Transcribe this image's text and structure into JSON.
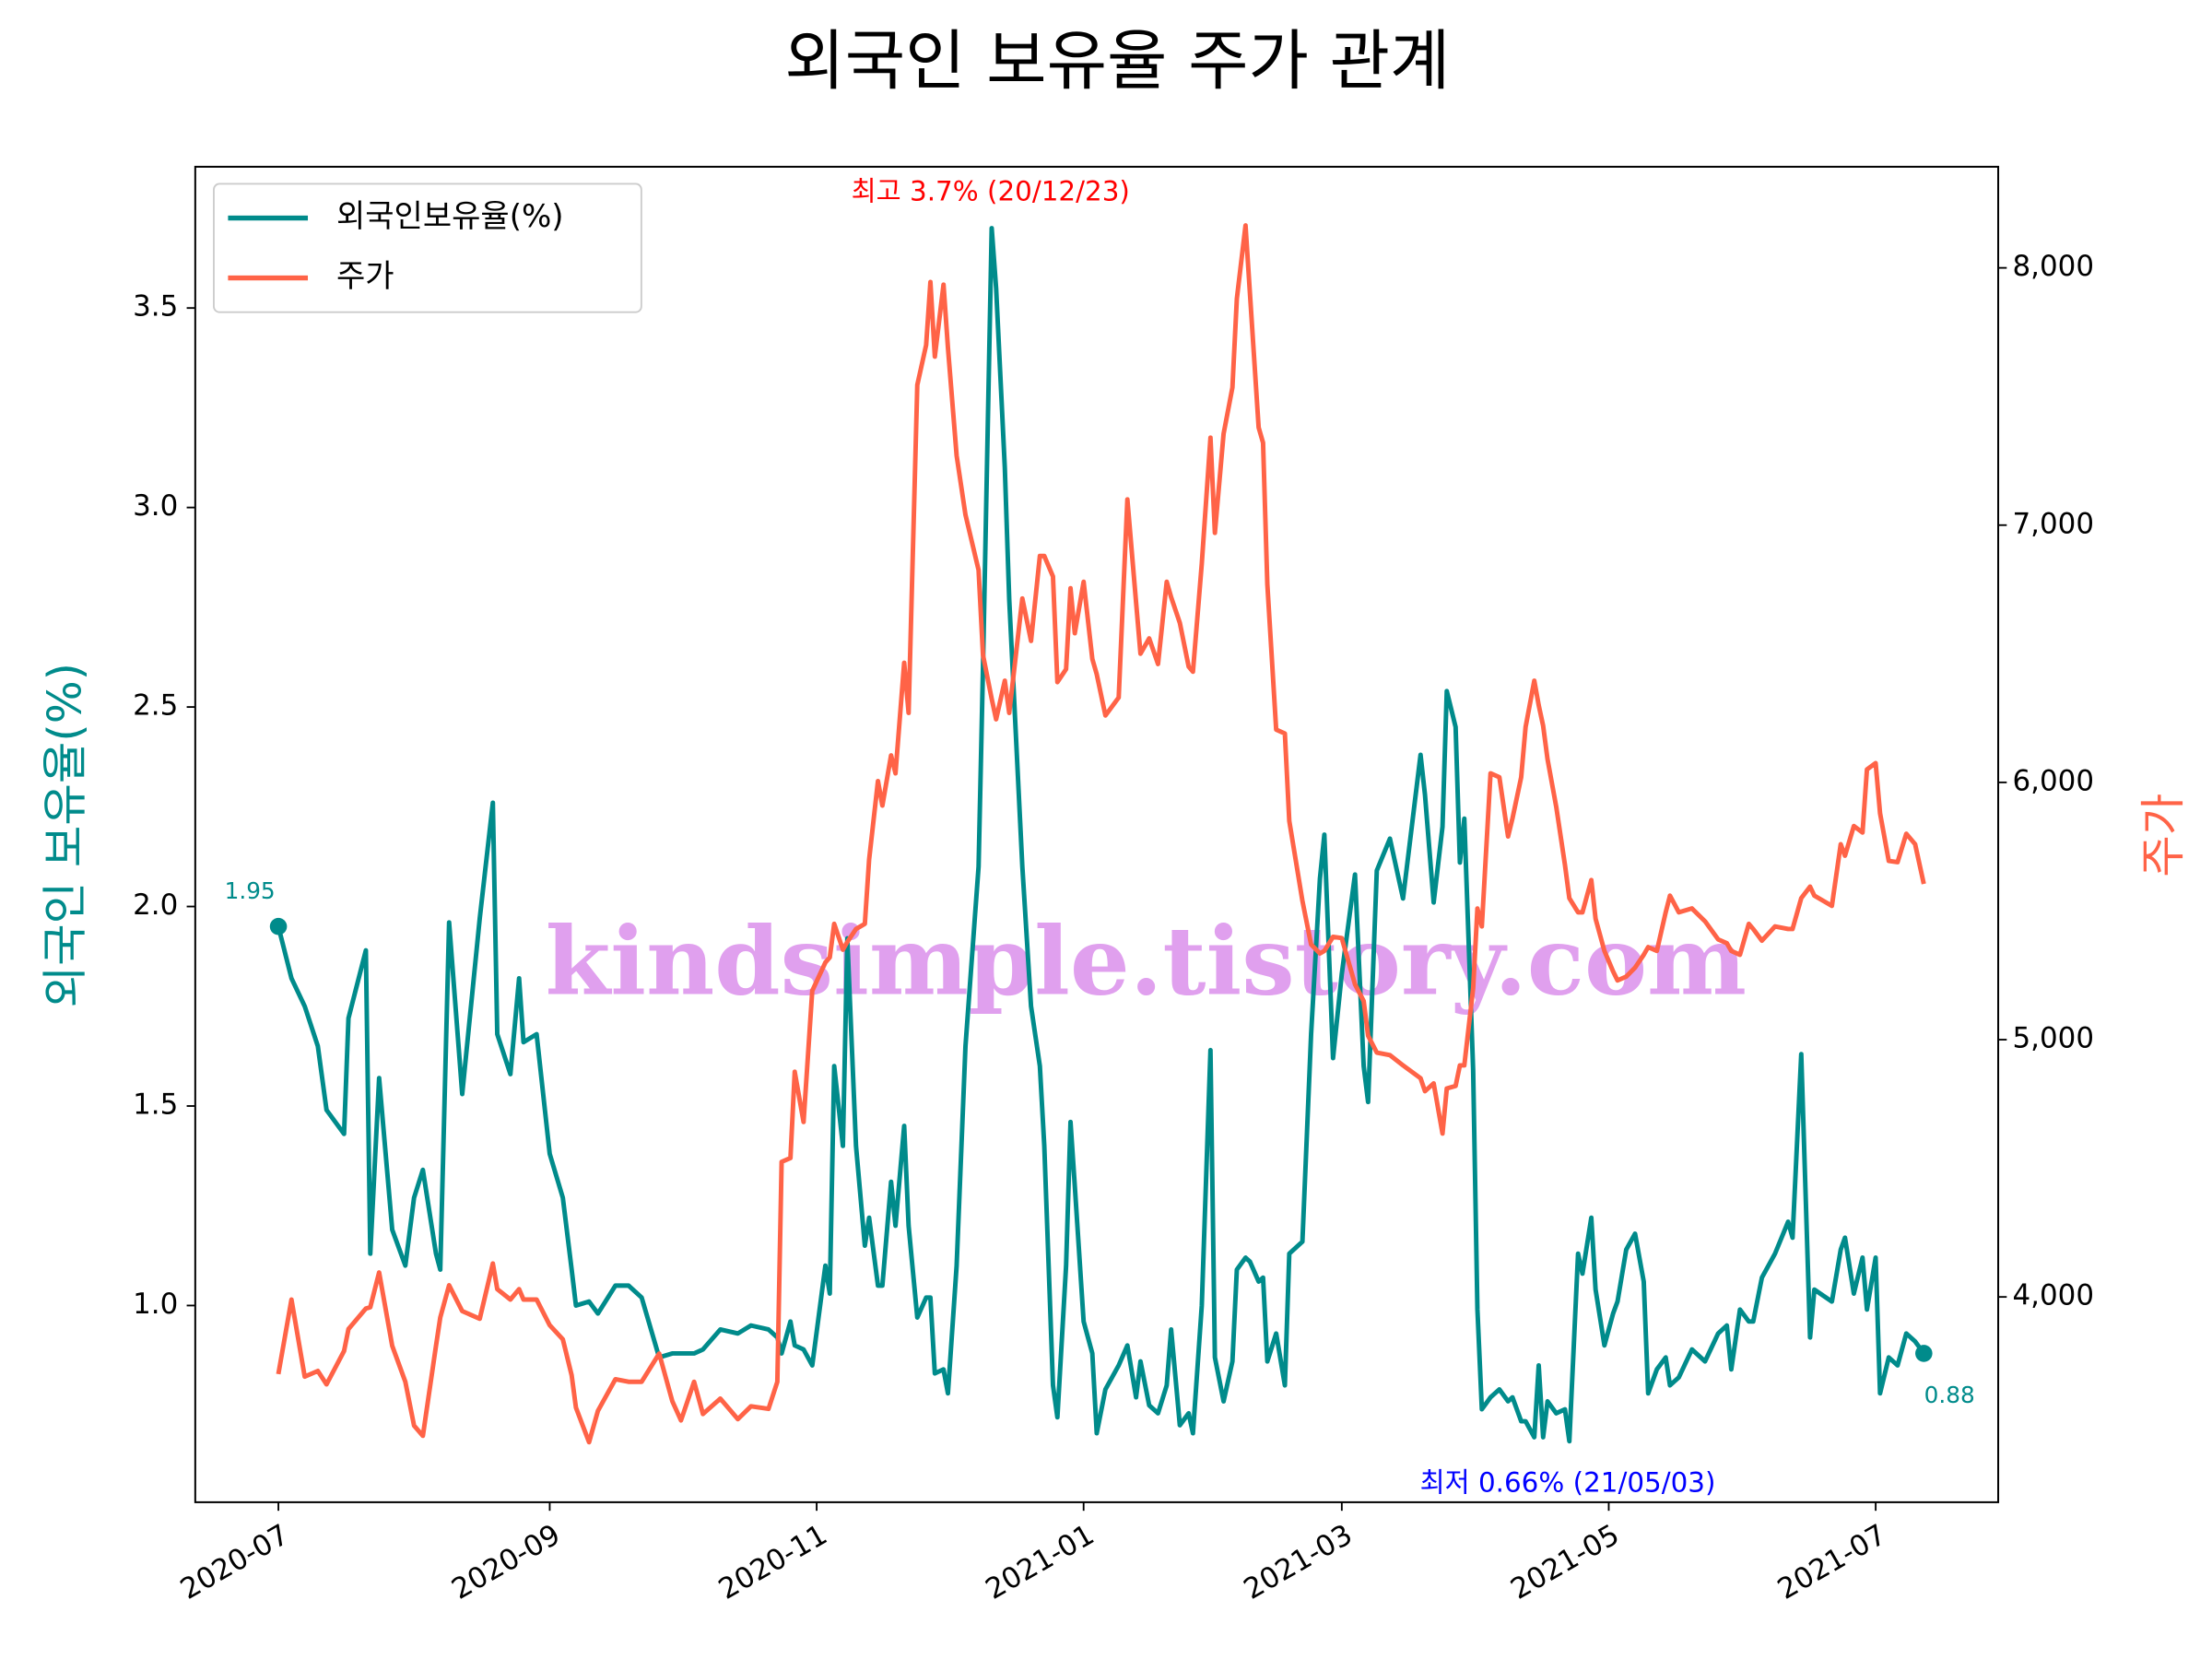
{
  "chart_data": {
    "type": "line",
    "title": "외국인 보유율 주가 관계",
    "ylabel": "외국인 보유율(%)",
    "y2label": "주가",
    "watermark": "kindsimple.tistory.com",
    "legend": "upper left",
    "annotations": [
      {
        "text": "최고 3.7% (20/12/23)",
        "color": "#ff0000"
      },
      {
        "text": "최저 0.66% (21/05/03)",
        "color": "#0000ff"
      }
    ],
    "xlim": [
      "2020-06-12",
      "2021-07-29"
    ],
    "xticks": [
      "2020-07",
      "2020-09",
      "2020-11",
      "2021-01",
      "2021-03",
      "2021-05",
      "2021-07"
    ],
    "ylim": [
      0.507,
      3.854
    ],
    "yticks": [
      {
        "value": 1,
        "label": "1.0"
      },
      1.5,
      {
        "value": 2,
        "label": "2.0"
      },
      2.5,
      {
        "value": 3,
        "label": "3.0"
      },
      3.5
    ],
    "y2lim": [
      3202,
      8393
    ],
    "y2ticks": [
      {
        "value": 4000,
        "label": "4,000"
      },
      {
        "value": 5000,
        "label": "5,000"
      },
      {
        "value": 6000,
        "label": "6,000"
      },
      {
        "value": 7000,
        "label": "7,000"
      },
      {
        "value": 8000,
        "label": "8,000"
      }
    ],
    "x": [
      "2020-07-01",
      "2020-07-04",
      "2020-07-07",
      "2020-07-10",
      "2020-07-12",
      "2020-07-16",
      "2020-07-17",
      "2020-07-21",
      "2020-07-22",
      "2020-07-24",
      "2020-07-27",
      "2020-07-30",
      "2020-08-01",
      "2020-08-03",
      "2020-08-06",
      "2020-08-07",
      "2020-08-09",
      "2020-08-12",
      "2020-08-16",
      "2020-08-19",
      "2020-08-20",
      "2020-08-23",
      "2020-08-25",
      "2020-08-26",
      "2020-08-29",
      "2020-09-01",
      "2020-09-04",
      "2020-09-06",
      "2020-09-07",
      "2020-09-10",
      "2020-09-12",
      "2020-09-16",
      "2020-09-19",
      "2020-09-22",
      "2020-09-26",
      "2020-09-29",
      "2020-10-01",
      "2020-10-04",
      "2020-10-06",
      "2020-10-10",
      "2020-10-14",
      "2020-10-17",
      "2020-10-21",
      "2020-10-23",
      "2020-10-24",
      "2020-10-26",
      "2020-10-27",
      "2020-10-29",
      "2020-10-31",
      "2020-11-03",
      "2020-11-04",
      "2020-11-05",
      "2020-11-07",
      "2020-11-08",
      "2020-11-10",
      "2020-11-12",
      "2020-11-13",
      "2020-11-15",
      "2020-11-16",
      "2020-11-18",
      "2020-11-19",
      "2020-11-21",
      "2020-11-22",
      "2020-11-24",
      "2020-11-26",
      "2020-11-27",
      "2020-11-28",
      "2020-11-30",
      "2020-12-01",
      "2020-12-03",
      "2020-12-05",
      "2020-12-08",
      "2020-12-09",
      "2020-12-11",
      "2020-12-12",
      "2020-12-14",
      "2020-12-15",
      "2020-12-18",
      "2020-12-20",
      "2020-12-22",
      "2020-12-23",
      "2020-12-25",
      "2020-12-26",
      "2020-12-28",
      "2020-12-29",
      "2020-12-30",
      "2021-01-01",
      "2021-01-03",
      "2021-01-04",
      "2021-01-06",
      "2021-01-09",
      "2021-01-11",
      "2021-01-13",
      "2021-01-14",
      "2021-01-16",
      "2021-01-18",
      "2021-01-20",
      "2021-01-21",
      "2021-01-23",
      "2021-01-25",
      "2021-01-26",
      "2021-01-28",
      "2021-01-30",
      "2021-01-31",
      "2021-02-02",
      "2021-02-04",
      "2021-02-05",
      "2021-02-07",
      "2021-02-08",
      "2021-02-10",
      "2021-02-11",
      "2021-02-12",
      "2021-02-14",
      "2021-02-16",
      "2021-02-17",
      "2021-02-20",
      "2021-02-22",
      "2021-02-24",
      "2021-02-25",
      "2021-02-27",
      "2021-03-01",
      "2021-03-04",
      "2021-03-06",
      "2021-03-07",
      "2021-03-09",
      "2021-03-12",
      "2021-03-15",
      "2021-03-19",
      "2021-03-20",
      "2021-03-22",
      "2021-03-24",
      "2021-03-25",
      "2021-03-27",
      "2021-03-28",
      "2021-03-29",
      "2021-03-31",
      "2021-04-01",
      "2021-04-02",
      "2021-04-04",
      "2021-04-06",
      "2021-04-08",
      "2021-04-09",
      "2021-04-11",
      "2021-04-12",
      "2021-04-14",
      "2021-04-15",
      "2021-04-16",
      "2021-04-17",
      "2021-04-19",
      "2021-04-21",
      "2021-04-22",
      "2021-04-24",
      "2021-04-25",
      "2021-04-27",
      "2021-04-28",
      "2021-04-30",
      "2021-05-02",
      "2021-05-03",
      "2021-05-05",
      "2021-05-07",
      "2021-05-09",
      "2021-05-10",
      "2021-05-12",
      "2021-05-14",
      "2021-05-15",
      "2021-05-17",
      "2021-05-20",
      "2021-05-23",
      "2021-05-26",
      "2021-05-28",
      "2021-05-29",
      "2021-05-31",
      "2021-06-02",
      "2021-06-03",
      "2021-06-05",
      "2021-06-08",
      "2021-06-11",
      "2021-06-12",
      "2021-06-14",
      "2021-06-16",
      "2021-06-17",
      "2021-06-21",
      "2021-06-23",
      "2021-06-24",
      "2021-06-26",
      "2021-06-28",
      "2021-06-29",
      "2021-07-01",
      "2021-07-02",
      "2021-07-04",
      "2021-07-06",
      "2021-07-08",
      "2021-07-10",
      "2021-07-12"
    ],
    "series": [
      {
        "name": "외국인보유율(%)",
        "color": "#008b8b",
        "values": [
          1.95,
          1.82,
          1.75,
          1.65,
          1.49,
          1.43,
          1.72,
          1.89,
          1.13,
          1.57,
          1.19,
          1.1,
          1.27,
          1.34,
          1.13,
          1.09,
          1.96,
          1.53,
          1.97,
          2.26,
          1.68,
          1.58,
          1.82,
          1.66,
          1.68,
          1.38,
          1.27,
          1.09,
          1.0,
          1.01,
          0.98,
          1.05,
          1.05,
          1.02,
          0.87,
          0.88,
          0.88,
          0.88,
          0.89,
          0.94,
          0.93,
          0.95,
          0.94,
          0.92,
          0.88,
          0.96,
          0.9,
          0.89,
          0.85,
          1.1,
          1.03,
          1.6,
          1.4,
          1.92,
          1.4,
          1.15,
          1.22,
          1.05,
          1.05,
          1.31,
          1.2,
          1.45,
          1.2,
          0.97,
          1.02,
          1.02,
          0.83,
          0.84,
          0.78,
          1.1,
          1.65,
          2.1,
          2.6,
          3.7,
          3.55,
          3.1,
          2.77,
          2.1,
          1.75,
          1.6,
          1.4,
          0.8,
          0.72,
          1.1,
          1.46,
          1.3,
          0.96,
          0.88,
          0.68,
          0.79,
          0.85,
          0.9,
          0.77,
          0.86,
          0.75,
          0.73,
          0.8,
          0.94,
          0.7,
          0.73,
          0.68,
          1.0,
          1.64,
          0.87,
          0.76,
          0.86,
          1.09,
          1.12,
          1.11,
          1.06,
          1.07,
          0.86,
          0.93,
          0.8,
          1.13,
          1.16,
          1.68,
          2.07,
          2.18,
          1.62,
          1.83,
          2.08,
          1.6,
          1.51,
          2.09,
          2.17,
          2.02,
          2.38,
          2.28,
          2.01,
          2.2,
          2.54,
          2.45,
          2.11,
          2.22,
          1.59,
          0.99,
          0.74,
          0.77,
          0.79,
          0.76,
          0.77,
          0.71,
          0.71,
          0.67,
          0.85,
          0.67,
          0.76,
          0.73,
          0.74,
          0.66,
          1.13,
          1.08,
          1.22,
          1.04,
          0.9,
          0.98,
          1.01,
          1.14,
          1.18,
          1.06,
          0.78,
          0.84,
          0.87,
          0.8,
          0.82,
          0.89,
          0.86,
          0.93,
          0.95,
          0.84,
          0.99,
          0.96,
          0.96,
          1.07,
          1.13,
          1.21,
          1.17,
          1.63,
          0.92,
          1.04,
          1.01,
          1.14,
          1.17,
          1.03,
          1.12,
          0.99,
          1.12,
          0.78,
          0.87,
          0.85,
          0.93,
          0.91,
          0.88
        ]
      },
      {
        "name": "주가",
        "color": "#ff6347",
        "axis": "y2",
        "values": [
          3700,
          3990,
          3690,
          3712,
          3660,
          3790,
          3875,
          3955,
          3960,
          4095,
          3810,
          3670,
          3500,
          3460,
          3810,
          3920,
          4045,
          3945,
          3915,
          4130,
          4030,
          3990,
          4030,
          3990,
          3990,
          3890,
          3835,
          3695,
          3570,
          3435,
          3557,
          3680,
          3670,
          3670,
          3780,
          3595,
          3520,
          3670,
          3545,
          3605,
          3525,
          3575,
          3565,
          3670,
          4525,
          4540,
          4875,
          4680,
          5190,
          5300,
          5320,
          5450,
          5350,
          5380,
          5430,
          5450,
          5700,
          6005,
          5910,
          6105,
          6035,
          6465,
          6270,
          7545,
          7700,
          7945,
          7655,
          7935,
          7690,
          7270,
          7040,
          6825,
          6495,
          6325,
          6245,
          6395,
          6270,
          6715,
          6550,
          6880,
          6880,
          6800,
          6390,
          6440,
          6755,
          6580,
          6780,
          6480,
          6420,
          6260,
          6330,
          7100,
          6700,
          6500,
          6560,
          6460,
          6780,
          6720,
          6620,
          6450,
          6430,
          6850,
          7340,
          6970,
          7355,
          7535,
          7880,
          8165,
          7900,
          7380,
          7320,
          6770,
          6205,
          6190,
          5850,
          5540,
          5370,
          5335,
          5345,
          5400,
          5395,
          5215,
          5150,
          5015,
          4950,
          4940,
          4900,
          4850,
          4800,
          4830,
          4635,
          4810,
          4820,
          4900,
          4900,
          5200,
          5510,
          5440,
          6035,
          6020,
          5790,
          5860,
          6020,
          6215,
          6395,
          6300,
          6220,
          6090,
          5905,
          5680,
          5550,
          5495,
          5495,
          5620,
          5470,
          5345,
          5265,
          5230,
          5245,
          5280,
          5330,
          5360,
          5345,
          5495,
          5560,
          5495,
          5510,
          5460,
          5390,
          5375,
          5345,
          5330,
          5450,
          5430,
          5385,
          5440,
          5430,
          5430,
          5550,
          5595,
          5560,
          5520,
          5760,
          5715,
          5830,
          5805,
          6050,
          6075,
          5880,
          5695,
          5690,
          5800,
          5760,
          5605
        ]
      }
    ]
  }
}
